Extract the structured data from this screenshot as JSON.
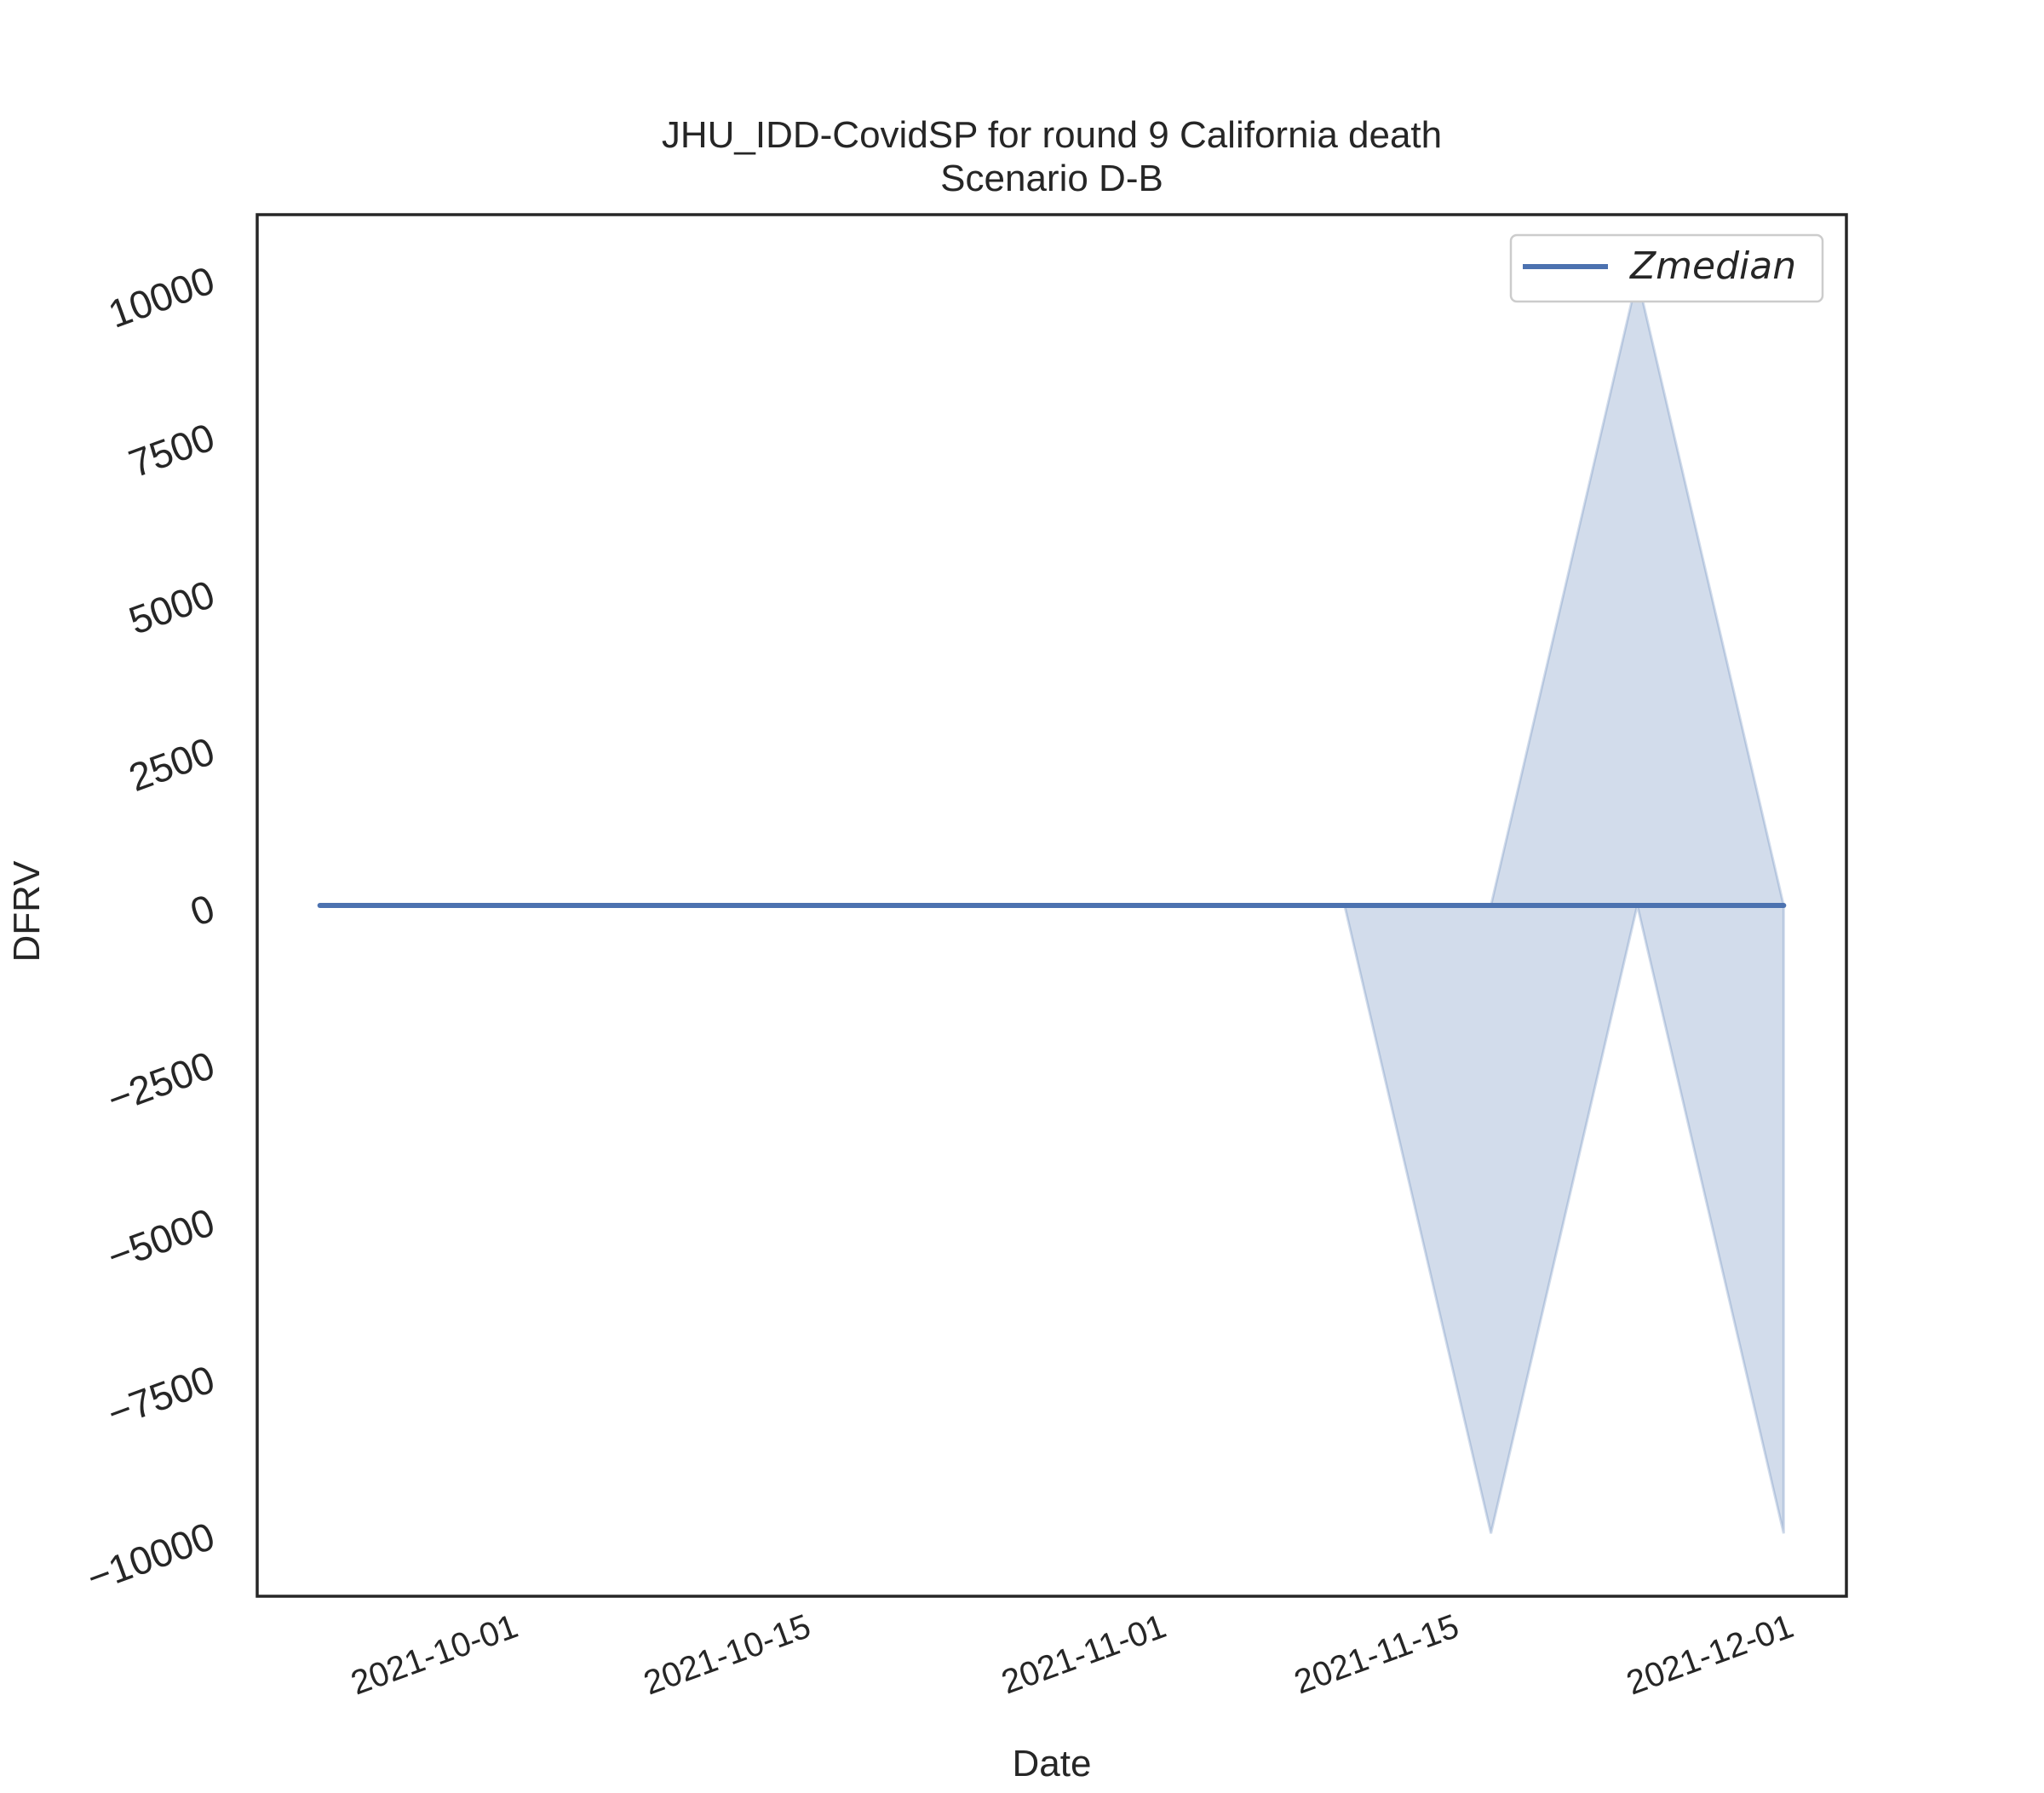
{
  "chart_data": {
    "type": "line",
    "title": "JHU_IDD-CovidSP for round 9 California death",
    "subtitle": "Scenario D-B",
    "xlabel": "Date",
    "ylabel": "DFRV",
    "x_axis_type": "date",
    "xlim": [
      "2021-09-19",
      "2021-12-04"
    ],
    "ylim": [
      -11000,
      11000
    ],
    "x_ticks": [
      "2021-10-01",
      "2021-10-15",
      "2021-11-01",
      "2021-11-15",
      "2021-12-01"
    ],
    "y_ticks": [
      10000,
      7500,
      5000,
      2500,
      0,
      -2500,
      -5000,
      -7500,
      -10000
    ],
    "y_tick_labels": [
      "10000",
      "7500",
      "5000",
      "2500",
      "0",
      "−2500",
      "−5000",
      "−7500",
      "−10000"
    ],
    "grid": false,
    "legend_position": "top-right",
    "series": [
      {
        "name": "Zmedian",
        "color": "#4c72b0",
        "x": [
          "2021-09-22",
          "2021-09-29",
          "2021-10-06",
          "2021-10-13",
          "2021-10-20",
          "2021-10-27",
          "2021-11-03",
          "2021-11-10",
          "2021-11-17",
          "2021-11-24",
          "2021-12-01"
        ],
        "values": [
          0,
          0,
          0,
          0,
          0,
          0,
          0,
          0,
          0,
          0,
          0
        ]
      }
    ],
    "band": {
      "color": "#4c72b0",
      "x": [
        "2021-09-22",
        "2021-09-29",
        "2021-10-06",
        "2021-10-13",
        "2021-10-20",
        "2021-10-27",
        "2021-11-03",
        "2021-11-10",
        "2021-11-17",
        "2021-11-24",
        "2021-12-01"
      ],
      "lower": [
        0,
        0,
        0,
        0,
        0,
        0,
        0,
        0,
        -10000,
        0,
        -10000
      ],
      "upper": [
        0,
        0,
        0,
        0,
        0,
        0,
        0,
        0,
        0,
        10000,
        0
      ]
    }
  }
}
